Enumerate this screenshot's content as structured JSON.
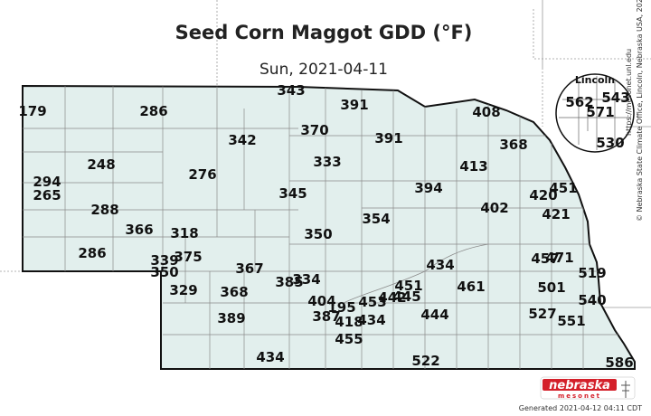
{
  "title": "Seed Corn Maggot GDD (°F)",
  "date": "Sun, 2021-04-11",
  "inset": {
    "label": "Lincoln",
    "values": [
      "562",
      "543",
      "571",
      "530"
    ]
  },
  "credit": "© Nebraska State Climate Office, Lincoln, Nebraska USA, 2021",
  "url": "https://mesonet.unl.edu",
  "generated": "Generated 2021-04-12 04:11 CDT",
  "logo": {
    "main": "nebraska",
    "sub": "mesonet"
  },
  "colors": {
    "state_fill": "#e2efed",
    "county_line": "#8a8a8a",
    "border": "#111111",
    "logo_bg": "#d4202a"
  },
  "values": [
    "179",
    "286",
    "343",
    "391",
    "408",
    "370",
    "342",
    "391",
    "368",
    "333",
    "248",
    "413",
    "276",
    "294",
    "265",
    "345",
    "394",
    "451",
    "420",
    "288",
    "402",
    "421",
    "366",
    "318",
    "354",
    "350",
    "286",
    "434",
    "339",
    "375",
    "457",
    "471",
    "350",
    "519",
    "367",
    "334",
    "385",
    "329",
    "368",
    "451",
    "461",
    "501",
    "445",
    "442",
    "453",
    "404",
    "195",
    "540",
    "387",
    "434",
    "418",
    "444",
    "527",
    "551",
    "389",
    "455",
    "434",
    "522",
    "586"
  ]
}
